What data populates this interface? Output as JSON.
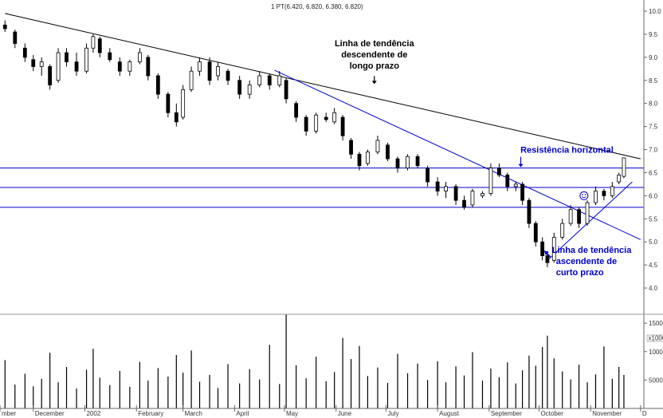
{
  "header": {
    "text": "1 PT(6.420, 6.820, 6.380, 6.820)"
  },
  "colors": {
    "trend_black": "#000000",
    "trend_blue": "#0000cc",
    "annotation_text": "#000000",
    "annotation_blue": "#0000cc",
    "up_candle": "#ffffff",
    "down_candle": "#000000"
  },
  "chart_data": {
    "type": "candlestick",
    "title": "",
    "price_axis": {
      "position": "right",
      "ylim": [
        3.5,
        10.0
      ],
      "ticks": [
        "10.0",
        "9.5",
        "9.0",
        "8.5",
        "8.0",
        "7.5",
        "7.0",
        "6.5",
        "6.0",
        "5.5",
        "5.0",
        "4.5",
        "4.0"
      ]
    },
    "volume_axis": {
      "position": "right",
      "ylim": [
        0,
        16000
      ],
      "ticks": [
        "15000",
        "10000",
        "5000"
      ],
      "unit": "x1000"
    },
    "x_axis": {
      "labels": [
        "mber",
        "December",
        "2002",
        "February",
        "March",
        "April",
        "May",
        "June",
        "July",
        "August",
        "September",
        "October",
        "November",
        "D"
      ]
    },
    "price_series": [
      {
        "d": "2001-11-14",
        "o": 9.7,
        "h": 9.8,
        "l": 9.55,
        "c": 9.62
      },
      {
        "d": "2001-11-20",
        "o": 9.55,
        "h": 9.6,
        "l": 9.2,
        "c": 9.3
      },
      {
        "d": "2001-11-26",
        "o": 9.2,
        "h": 9.3,
        "l": 8.9,
        "c": 9.0
      },
      {
        "d": "2001-12-01",
        "o": 8.95,
        "h": 9.05,
        "l": 8.7,
        "c": 8.8
      },
      {
        "d": "2001-12-06",
        "o": 8.8,
        "h": 9.0,
        "l": 8.6,
        "c": 8.9
      },
      {
        "d": "2001-12-11",
        "o": 8.8,
        "h": 8.85,
        "l": 8.3,
        "c": 8.4
      },
      {
        "d": "2001-12-16",
        "o": 8.5,
        "h": 9.2,
        "l": 8.45,
        "c": 9.1
      },
      {
        "d": "2001-12-21",
        "o": 9.1,
        "h": 9.2,
        "l": 8.8,
        "c": 8.9
      },
      {
        "d": "2001-12-27",
        "o": 8.9,
        "h": 9.1,
        "l": 8.6,
        "c": 8.7
      },
      {
        "d": "2002-01-02",
        "o": 8.7,
        "h": 9.3,
        "l": 8.65,
        "c": 9.2
      },
      {
        "d": "2002-01-06",
        "o": 9.2,
        "h": 9.5,
        "l": 9.1,
        "c": 9.45
      },
      {
        "d": "2002-01-10",
        "o": 9.4,
        "h": 9.45,
        "l": 9.0,
        "c": 9.1
      },
      {
        "d": "2002-01-16",
        "o": 9.1,
        "h": 9.2,
        "l": 8.9,
        "c": 8.95
      },
      {
        "d": "2002-01-22",
        "o": 8.9,
        "h": 9.0,
        "l": 8.6,
        "c": 8.7
      },
      {
        "d": "2002-01-28",
        "o": 8.7,
        "h": 8.95,
        "l": 8.6,
        "c": 8.9
      },
      {
        "d": "2002-02-03",
        "o": 8.9,
        "h": 9.2,
        "l": 8.85,
        "c": 9.1
      },
      {
        "d": "2002-02-08",
        "o": 9.0,
        "h": 9.05,
        "l": 8.5,
        "c": 8.6
      },
      {
        "d": "2002-02-14",
        "o": 8.6,
        "h": 8.65,
        "l": 8.1,
        "c": 8.2
      },
      {
        "d": "2002-02-20",
        "o": 8.2,
        "h": 8.25,
        "l": 7.7,
        "c": 7.8
      },
      {
        "d": "2002-02-25",
        "o": 7.8,
        "h": 8.0,
        "l": 7.5,
        "c": 7.6
      },
      {
        "d": "2002-03-01",
        "o": 7.7,
        "h": 8.4,
        "l": 7.65,
        "c": 8.3
      },
      {
        "d": "2002-03-06",
        "o": 8.3,
        "h": 8.8,
        "l": 8.25,
        "c": 8.7
      },
      {
        "d": "2002-03-11",
        "o": 8.7,
        "h": 9.0,
        "l": 8.6,
        "c": 8.9
      },
      {
        "d": "2002-03-17",
        "o": 8.9,
        "h": 9.0,
        "l": 8.4,
        "c": 8.5
      },
      {
        "d": "2002-03-22",
        "o": 8.6,
        "h": 8.9,
        "l": 8.5,
        "c": 8.8
      },
      {
        "d": "2002-03-28",
        "o": 8.7,
        "h": 8.75,
        "l": 8.4,
        "c": 8.5
      },
      {
        "d": "2002-04-04",
        "o": 8.5,
        "h": 8.6,
        "l": 8.1,
        "c": 8.2
      },
      {
        "d": "2002-04-10",
        "o": 8.2,
        "h": 8.5,
        "l": 8.1,
        "c": 8.4
      },
      {
        "d": "2002-04-16",
        "o": 8.4,
        "h": 8.7,
        "l": 8.35,
        "c": 8.6
      },
      {
        "d": "2002-04-22",
        "o": 8.6,
        "h": 8.65,
        "l": 8.3,
        "c": 8.4
      },
      {
        "d": "2002-04-28",
        "o": 8.4,
        "h": 8.7,
        "l": 8.35,
        "c": 8.6
      },
      {
        "d": "2002-05-02",
        "o": 8.5,
        "h": 8.55,
        "l": 8.0,
        "c": 8.1
      },
      {
        "d": "2002-05-08",
        "o": 8.0,
        "h": 8.05,
        "l": 7.6,
        "c": 7.7
      },
      {
        "d": "2002-05-14",
        "o": 7.7,
        "h": 7.75,
        "l": 7.3,
        "c": 7.4
      },
      {
        "d": "2002-05-20",
        "o": 7.4,
        "h": 7.8,
        "l": 7.35,
        "c": 7.75
      },
      {
        "d": "2002-05-26",
        "o": 7.7,
        "h": 7.8,
        "l": 7.6,
        "c": 7.65
      },
      {
        "d": "2002-05-31",
        "o": 7.6,
        "h": 7.9,
        "l": 7.55,
        "c": 7.8
      },
      {
        "d": "2002-06-05",
        "o": 7.7,
        "h": 7.75,
        "l": 7.2,
        "c": 7.3
      },
      {
        "d": "2002-06-10",
        "o": 7.2,
        "h": 7.25,
        "l": 6.8,
        "c": 6.9
      },
      {
        "d": "2002-06-15",
        "o": 6.9,
        "h": 6.95,
        "l": 6.55,
        "c": 6.65
      },
      {
        "d": "2002-06-20",
        "o": 6.7,
        "h": 7.0,
        "l": 6.65,
        "c": 6.95
      },
      {
        "d": "2002-06-26",
        "o": 6.95,
        "h": 7.3,
        "l": 6.9,
        "c": 7.2
      },
      {
        "d": "2002-07-02",
        "o": 7.1,
        "h": 7.15,
        "l": 6.75,
        "c": 6.8
      },
      {
        "d": "2002-07-08",
        "o": 6.8,
        "h": 6.85,
        "l": 6.5,
        "c": 6.6
      },
      {
        "d": "2002-07-14",
        "o": 6.6,
        "h": 6.9,
        "l": 6.55,
        "c": 6.85
      },
      {
        "d": "2002-07-20",
        "o": 6.85,
        "h": 6.9,
        "l": 6.6,
        "c": 6.65
      },
      {
        "d": "2002-07-26",
        "o": 6.6,
        "h": 6.65,
        "l": 6.2,
        "c": 6.3
      },
      {
        "d": "2002-08-01",
        "o": 6.3,
        "h": 6.4,
        "l": 6.0,
        "c": 6.1
      },
      {
        "d": "2002-08-06",
        "o": 6.1,
        "h": 6.3,
        "l": 5.95,
        "c": 6.2
      },
      {
        "d": "2002-08-12",
        "o": 6.2,
        "h": 6.25,
        "l": 5.8,
        "c": 5.9
      },
      {
        "d": "2002-08-17",
        "o": 5.9,
        "h": 6.0,
        "l": 5.7,
        "c": 5.75
      },
      {
        "d": "2002-08-22",
        "o": 5.8,
        "h": 6.15,
        "l": 5.75,
        "c": 6.1
      },
      {
        "d": "2002-08-28",
        "o": 6.0,
        "h": 6.1,
        "l": 5.95,
        "c": 6.05
      },
      {
        "d": "2002-09-02",
        "o": 6.05,
        "h": 6.7,
        "l": 6.0,
        "c": 6.6
      },
      {
        "d": "2002-09-07",
        "o": 6.6,
        "h": 6.7,
        "l": 6.4,
        "c": 6.45
      },
      {
        "d": "2002-09-12",
        "o": 6.45,
        "h": 6.5,
        "l": 6.1,
        "c": 6.2
      },
      {
        "d": "2002-09-17",
        "o": 6.2,
        "h": 6.3,
        "l": 6.1,
        "c": 6.25
      },
      {
        "d": "2002-09-21",
        "o": 6.25,
        "h": 6.3,
        "l": 5.8,
        "c": 5.9
      },
      {
        "d": "2002-09-25",
        "o": 5.9,
        "h": 5.95,
        "l": 5.3,
        "c": 5.4
      },
      {
        "d": "2002-09-29",
        "o": 5.4,
        "h": 5.45,
        "l": 4.9,
        "c": 5.0
      },
      {
        "d": "2002-10-03",
        "o": 5.0,
        "h": 5.1,
        "l": 4.6,
        "c": 4.7
      },
      {
        "d": "2002-10-06",
        "o": 4.7,
        "h": 4.8,
        "l": 4.45,
        "c": 4.55
      },
      {
        "d": "2002-10-10",
        "o": 4.6,
        "h": 5.2,
        "l": 4.55,
        "c": 5.1
      },
      {
        "d": "2002-10-15",
        "o": 5.1,
        "h": 5.5,
        "l": 5.05,
        "c": 5.4
      },
      {
        "d": "2002-10-20",
        "o": 5.4,
        "h": 5.8,
        "l": 5.35,
        "c": 5.7
      },
      {
        "d": "2002-10-25",
        "o": 5.7,
        "h": 5.75,
        "l": 5.3,
        "c": 5.4
      },
      {
        "d": "2002-10-30",
        "o": 5.4,
        "h": 5.9,
        "l": 5.35,
        "c": 5.85
      },
      {
        "d": "2002-11-04",
        "o": 5.85,
        "h": 6.2,
        "l": 5.8,
        "c": 6.1
      },
      {
        "d": "2002-11-09",
        "o": 6.1,
        "h": 6.15,
        "l": 5.9,
        "c": 6.0
      },
      {
        "d": "2002-11-14",
        "o": 6.0,
        "h": 6.3,
        "l": 5.95,
        "c": 6.2
      },
      {
        "d": "2002-11-18",
        "o": 6.3,
        "h": 6.5,
        "l": 6.25,
        "c": 6.45
      },
      {
        "d": "2002-11-21",
        "o": 6.42,
        "h": 6.82,
        "l": 6.38,
        "c": 6.82
      }
    ],
    "volume_series": [
      {
        "d": "2001-11-14",
        "v": 8500
      },
      {
        "d": "2001-11-20",
        "v": 4200
      },
      {
        "d": "2001-11-26",
        "v": 6100
      },
      {
        "d": "2001-12-01",
        "v": 3900
      },
      {
        "d": "2001-12-06",
        "v": 5200
      },
      {
        "d": "2001-12-11",
        "v": 9800
      },
      {
        "d": "2001-12-16",
        "v": 4600
      },
      {
        "d": "2001-12-21",
        "v": 7300
      },
      {
        "d": "2001-12-27",
        "v": 3500
      },
      {
        "d": "2002-01-02",
        "v": 6800
      },
      {
        "d": "2002-01-06",
        "v": 10500
      },
      {
        "d": "2002-01-10",
        "v": 5400
      },
      {
        "d": "2002-01-16",
        "v": 4100
      },
      {
        "d": "2002-01-22",
        "v": 6600
      },
      {
        "d": "2002-01-28",
        "v": 3800
      },
      {
        "d": "2002-02-03",
        "v": 8200
      },
      {
        "d": "2002-02-08",
        "v": 4900
      },
      {
        "d": "2002-02-14",
        "v": 7100
      },
      {
        "d": "2002-02-20",
        "v": 5600
      },
      {
        "d": "2002-02-25",
        "v": 9400
      },
      {
        "d": "2002-03-01",
        "v": 6300
      },
      {
        "d": "2002-03-06",
        "v": 10200
      },
      {
        "d": "2002-03-11",
        "v": 4700
      },
      {
        "d": "2002-03-17",
        "v": 5900
      },
      {
        "d": "2002-03-22",
        "v": 3600
      },
      {
        "d": "2002-03-28",
        "v": 7800
      },
      {
        "d": "2002-04-04",
        "v": 4400
      },
      {
        "d": "2002-04-10",
        "v": 6900
      },
      {
        "d": "2002-04-16",
        "v": 5100
      },
      {
        "d": "2002-04-22",
        "v": 11200
      },
      {
        "d": "2002-04-28",
        "v": 4300
      },
      {
        "d": "2002-05-02",
        "v": 16500
      },
      {
        "d": "2002-05-08",
        "v": 7600
      },
      {
        "d": "2002-05-14",
        "v": 5300
      },
      {
        "d": "2002-05-20",
        "v": 9100
      },
      {
        "d": "2002-05-26",
        "v": 4800
      },
      {
        "d": "2002-05-31",
        "v": 6400
      },
      {
        "d": "2002-06-05",
        "v": 12400
      },
      {
        "d": "2002-06-10",
        "v": 8700
      },
      {
        "d": "2002-06-15",
        "v": 11000
      },
      {
        "d": "2002-06-20",
        "v": 5700
      },
      {
        "d": "2002-06-26",
        "v": 7200
      },
      {
        "d": "2002-07-02",
        "v": 4500
      },
      {
        "d": "2002-07-08",
        "v": 9600
      },
      {
        "d": "2002-07-14",
        "v": 6200
      },
      {
        "d": "2002-07-20",
        "v": 7900
      },
      {
        "d": "2002-07-26",
        "v": 5000
      },
      {
        "d": "2002-08-01",
        "v": 8300
      },
      {
        "d": "2002-08-06",
        "v": 4600
      },
      {
        "d": "2002-08-12",
        "v": 7400
      },
      {
        "d": "2002-08-17",
        "v": 5800
      },
      {
        "d": "2002-08-22",
        "v": 9900
      },
      {
        "d": "2002-08-28",
        "v": 4900
      },
      {
        "d": "2002-09-02",
        "v": 7000
      },
      {
        "d": "2002-09-07",
        "v": 5500
      },
      {
        "d": "2002-09-12",
        "v": 8100
      },
      {
        "d": "2002-09-17",
        "v": 4400
      },
      {
        "d": "2002-09-21",
        "v": 6700
      },
      {
        "d": "2002-09-25",
        "v": 9300
      },
      {
        "d": "2002-09-29",
        "v": 7500
      },
      {
        "d": "2002-10-03",
        "v": 10800
      },
      {
        "d": "2002-10-06",
        "v": 12800
      },
      {
        "d": "2002-10-10",
        "v": 8800
      },
      {
        "d": "2002-10-15",
        "v": 6500
      },
      {
        "d": "2002-10-20",
        "v": 5100
      },
      {
        "d": "2002-10-25",
        "v": 7700
      },
      {
        "d": "2002-10-30",
        "v": 4600
      },
      {
        "d": "2002-11-04",
        "v": 6000
      },
      {
        "d": "2002-11-09",
        "v": 10900
      },
      {
        "d": "2002-11-14",
        "v": 5200
      },
      {
        "d": "2002-11-18",
        "v": 7300
      },
      {
        "d": "2002-11-21",
        "v": 5900
      }
    ],
    "horizontal_lines": [
      {
        "value": 6.6,
        "color": "#0000cc"
      },
      {
        "value": 6.18,
        "color": "#0000cc"
      },
      {
        "value": 5.75,
        "color": "#0000cc"
      }
    ],
    "trend_lines": [
      {
        "name": "long_term_descending",
        "color": "#000000",
        "from": {
          "d": "2001-11-14",
          "v": 9.95
        },
        "to": {
          "d": "2002-12-01",
          "v": 6.8
        }
      },
      {
        "name": "short_term_descending",
        "color": "#0000cc",
        "from": {
          "d": "2002-04-25",
          "v": 8.72
        },
        "to": {
          "d": "2002-12-01",
          "v": 5.05
        }
      },
      {
        "name": "short_term_ascending",
        "color": "#0000cc",
        "from": {
          "d": "2002-10-06",
          "v": 4.6
        },
        "to": {
          "d": "2002-11-26",
          "v": 6.3
        }
      }
    ],
    "annotations": [
      {
        "text_lines": [
          "Linha de tendência",
          "descendente de",
          "longo prazo"
        ],
        "color": "#000000",
        "arrow": "down",
        "arrow_target": {
          "d": "2002-06-24",
          "v": 8.42
        }
      },
      {
        "text_lines": [
          "Resistência horizontal"
        ],
        "color": "#0000cc",
        "arrow": "down",
        "arrow_target": {
          "d": "2002-09-20",
          "v": 6.6
        }
      },
      {
        "text_lines": [
          "Linha de tendência",
          "ascendente de",
          "curto prazo"
        ],
        "color": "#0000cc",
        "arrow": "up-left",
        "arrow_target": {
          "d": "2002-10-04",
          "v": 4.78
        }
      }
    ],
    "smiley": {
      "d": "2002-10-28",
      "v": 6.0
    }
  }
}
